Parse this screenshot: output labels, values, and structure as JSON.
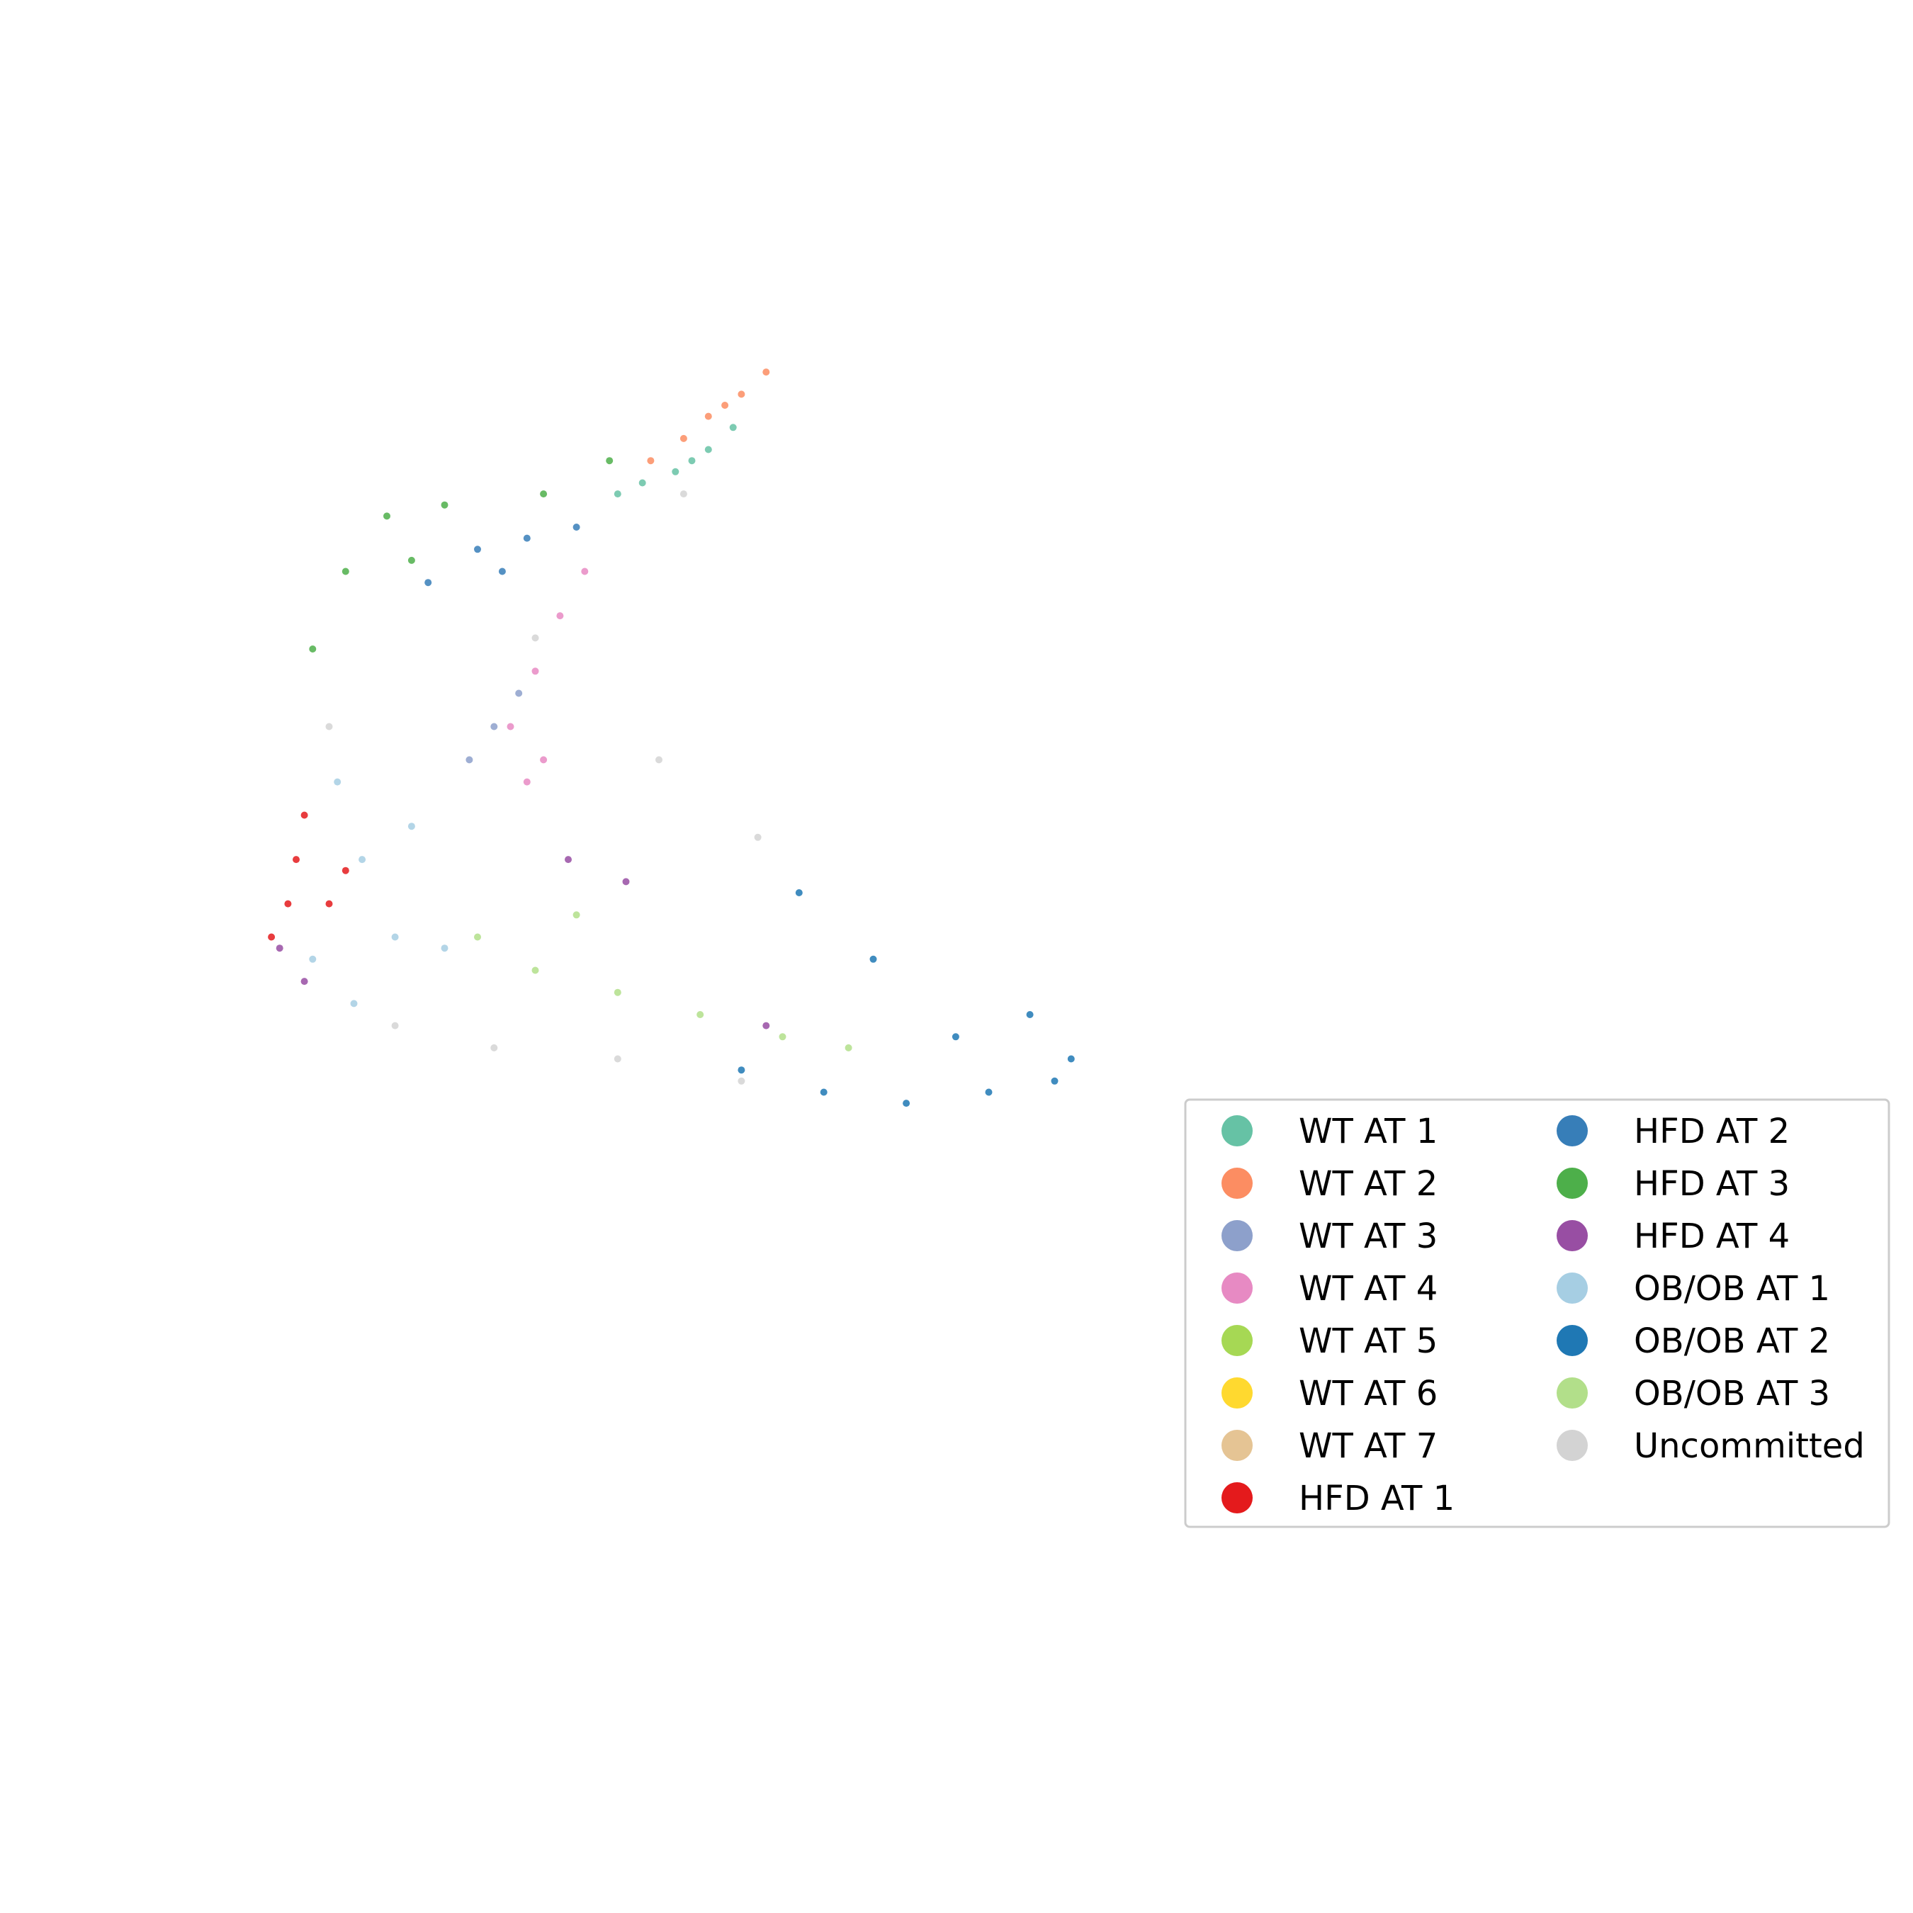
{
  "chart_data": {
    "type": "scatter",
    "title": "",
    "xlabel": "",
    "ylabel": "",
    "axes_visible": false,
    "grid": false,
    "legend_placement": "lower-right",
    "legend_columns": 2,
    "xlim": [
      -0.5,
      10.5
    ],
    "ylim": [
      -0.5,
      10.5
    ],
    "series": [
      {
        "name": "WT AT 1",
        "color": "#66c2a5",
        "approx_points": [
          [
            4.5,
            8.6
          ],
          [
            5.2,
            8.8
          ],
          [
            5.6,
            9.0
          ],
          [
            5.9,
            9.2
          ],
          [
            4.8,
            8.7
          ],
          [
            5.4,
            8.9
          ]
        ]
      },
      {
        "name": "WT AT 2",
        "color": "#fc8d62",
        "approx_points": [
          [
            4.9,
            8.9
          ],
          [
            5.3,
            9.1
          ],
          [
            5.6,
            9.3
          ],
          [
            6.0,
            9.5
          ],
          [
            6.3,
            9.7
          ],
          [
            5.8,
            9.4
          ]
        ]
      },
      {
        "name": "WT AT 3",
        "color": "#8da0cb",
        "approx_points": [
          [
            2.7,
            6.2
          ],
          [
            3.0,
            6.5
          ],
          [
            3.3,
            6.8
          ]
        ]
      },
      {
        "name": "WT AT 4",
        "color": "#e78ac3",
        "approx_points": [
          [
            3.2,
            6.5
          ],
          [
            3.5,
            7.0
          ],
          [
            3.8,
            7.5
          ],
          [
            4.1,
            7.9
          ],
          [
            3.6,
            6.2
          ],
          [
            3.4,
            6.0
          ]
        ]
      },
      {
        "name": "WT AT 5",
        "color": "#a6d854",
        "approx_points": []
      },
      {
        "name": "WT AT 6",
        "color": "#ffd92f",
        "approx_points": []
      },
      {
        "name": "WT AT 7",
        "color": "#e5c494",
        "approx_points": []
      },
      {
        "name": "HFD AT 1",
        "color": "#e41a1c",
        "approx_points": [
          [
            0.3,
            4.6
          ],
          [
            0.5,
            4.9
          ],
          [
            0.6,
            5.3
          ],
          [
            0.7,
            5.7
          ],
          [
            1.0,
            4.9
          ],
          [
            1.2,
            5.2
          ]
        ]
      },
      {
        "name": "HFD AT 2",
        "color": "#377eb8",
        "approx_points": [
          [
            2.2,
            7.8
          ],
          [
            2.8,
            8.1
          ],
          [
            3.4,
            8.2
          ],
          [
            4.0,
            8.3
          ],
          [
            3.1,
            7.9
          ]
        ]
      },
      {
        "name": "HFD AT 3",
        "color": "#4daf4a",
        "approx_points": [
          [
            0.8,
            7.2
          ],
          [
            1.2,
            7.9
          ],
          [
            1.7,
            8.4
          ],
          [
            2.4,
            8.5
          ],
          [
            3.6,
            8.6
          ],
          [
            4.4,
            8.9
          ],
          [
            2.0,
            8.0
          ]
        ]
      },
      {
        "name": "HFD AT 4",
        "color": "#984ea3",
        "approx_points": [
          [
            0.4,
            4.5
          ],
          [
            0.7,
            4.2
          ],
          [
            3.9,
            5.3
          ],
          [
            4.6,
            5.1
          ],
          [
            6.3,
            3.8
          ]
        ]
      },
      {
        "name": "OB/OB AT 1",
        "color": "#a6cee3",
        "approx_points": [
          [
            0.8,
            4.4
          ],
          [
            1.3,
            4.0
          ],
          [
            1.8,
            4.6
          ],
          [
            1.4,
            5.3
          ],
          [
            2.0,
            5.6
          ],
          [
            1.1,
            6.0
          ],
          [
            2.4,
            4.5
          ]
        ]
      },
      {
        "name": "OB/OB AT 2",
        "color": "#1f78b4",
        "approx_points": [
          [
            6.0,
            3.4
          ],
          [
            7.0,
            3.2
          ],
          [
            8.0,
            3.1
          ],
          [
            9.0,
            3.2
          ],
          [
            9.8,
            3.3
          ],
          [
            8.6,
            3.7
          ],
          [
            9.5,
            3.9
          ],
          [
            10.0,
            3.5
          ],
          [
            7.6,
            4.4
          ],
          [
            6.7,
            5.0
          ]
        ]
      },
      {
        "name": "OB/OB AT 3",
        "color": "#b2df8a",
        "approx_points": [
          [
            2.8,
            4.6
          ],
          [
            3.5,
            4.3
          ],
          [
            4.5,
            4.1
          ],
          [
            5.5,
            3.9
          ],
          [
            6.5,
            3.7
          ],
          [
            7.3,
            3.6
          ],
          [
            4.0,
            4.8
          ]
        ]
      },
      {
        "name": "Uncommitted",
        "color": "#d3d3d3",
        "approx_points": [
          [
            1.0,
            6.5
          ],
          [
            1.8,
            3.8
          ],
          [
            3.0,
            3.6
          ],
          [
            4.5,
            3.5
          ],
          [
            6.0,
            3.3
          ],
          [
            3.5,
            7.3
          ],
          [
            5.0,
            6.2
          ],
          [
            6.2,
            5.5
          ],
          [
            5.3,
            8.6
          ]
        ]
      }
    ]
  }
}
